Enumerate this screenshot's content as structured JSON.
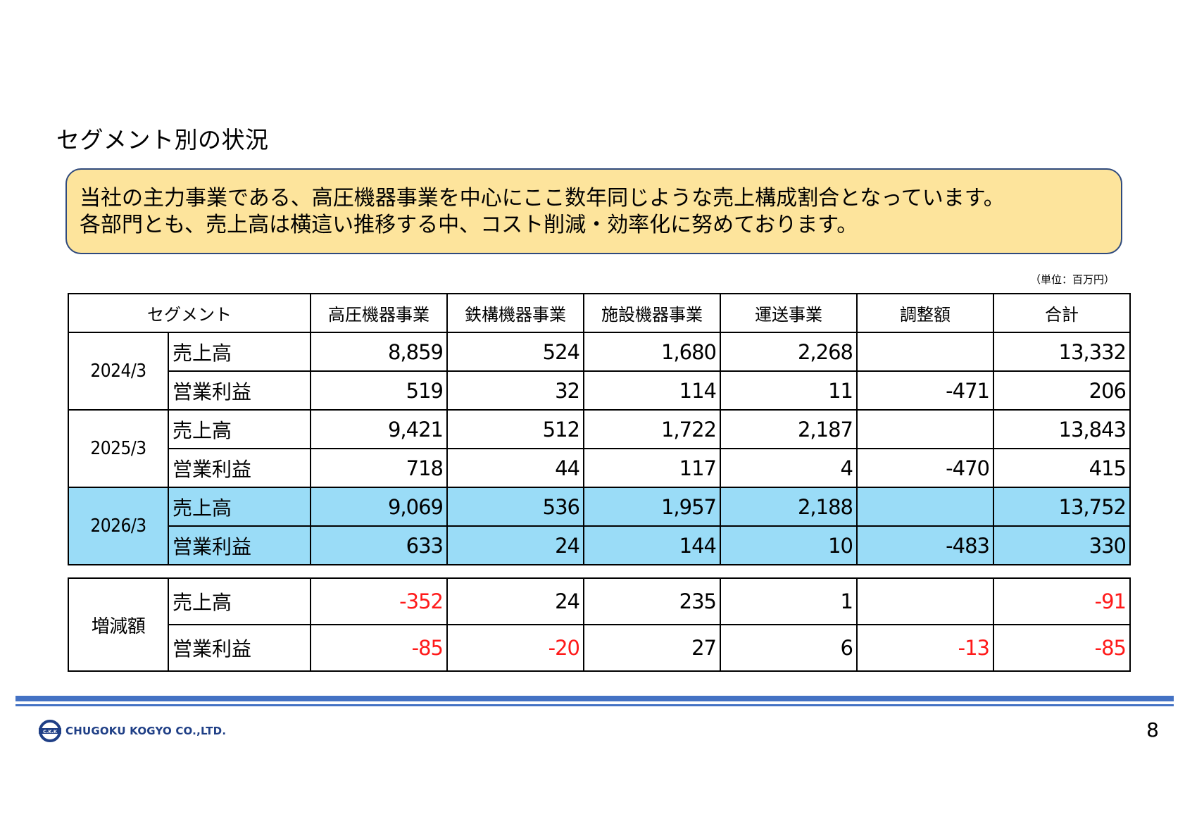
{
  "page_title": "セグメント別の状況",
  "summary": {
    "line1": "当社の主力事業である、高圧機器事業を中心にここ数年同じような売上構成割合となっています。",
    "line2": "各部門とも、売上高は横這い推移する中、コスト削減・効率化に努めております。"
  },
  "unit_label": "（単位：百万円）",
  "table": {
    "header": [
      "セグメント",
      "高圧機器事業",
      "鉄構機器事業",
      "施設機器事業",
      "運送事業",
      "調整額",
      "合計"
    ],
    "rows": [
      {
        "period": "2024/3",
        "sales": {
          "label": "売上高",
          "values": [
            "8,859",
            "524",
            "1,680",
            "2,268",
            "",
            "13,332"
          ]
        },
        "profit": {
          "label": "営業利益",
          "values": [
            "519",
            "32",
            "114",
            "11",
            "-471",
            "206"
          ]
        }
      },
      {
        "period": "2025/3",
        "sales": {
          "label": "売上高",
          "values": [
            "9,421",
            "512",
            "1,722",
            "2,187",
            "",
            "13,843"
          ]
        },
        "profit": {
          "label": "営業利益",
          "values": [
            "718",
            "44",
            "117",
            "4",
            "-470",
            "415"
          ]
        }
      },
      {
        "period": "2026/3",
        "sales": {
          "label": "売上高",
          "values": [
            "9,069",
            "536",
            "1,957",
            "2,188",
            "",
            "13,752"
          ]
        },
        "profit": {
          "label": "営業利益",
          "values": [
            "633",
            "24",
            "144",
            "10",
            "-483",
            "330"
          ]
        }
      }
    ],
    "highlight_color": "#9adcf7"
  },
  "change": {
    "label": "増減額",
    "sales": {
      "label": "売上高",
      "values": [
        "-352",
        "24",
        "235",
        "1",
        "",
        "-91"
      ]
    },
    "profit": {
      "label": "営業利益",
      "values": [
        "-85",
        "-20",
        "27",
        "6",
        "-13",
        "-85"
      ]
    },
    "negative_color": "#ff1a1a"
  },
  "footer": {
    "company": "CHUGOKU KOGYO CO.,LTD.",
    "logo_letters": "C.K.K",
    "page_number": "8",
    "rule_color": "#4472c4"
  }
}
